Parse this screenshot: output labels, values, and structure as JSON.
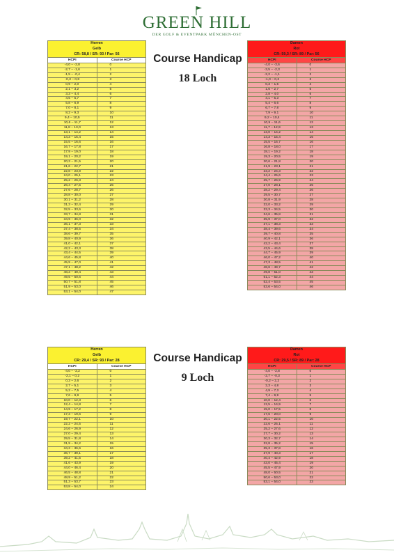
{
  "logo": {
    "title": "GREEN HILL",
    "subtitle": "DER GOLF & EVENTPARK MÜNCHEN-OST"
  },
  "section18": {
    "title": "Course Handicap",
    "subtitle": "18 Loch"
  },
  "section9": {
    "title": "Course Handicap",
    "subtitle": "9 Loch"
  },
  "tables": {
    "h18": {
      "line1": "Herren",
      "line2": "Gelb",
      "line3": "CR: 58,8 / SR: 93 / Par: 56",
      "col1": "HCPI",
      "col2": "Course HCP",
      "rows": [
        [
          "-4,0 – -2,8",
          "0"
        ],
        [
          "-2,7 – -1,6",
          "1"
        ],
        [
          "-1,5 – -0,4",
          "2"
        ],
        [
          "-0,3 – 0,8",
          "3"
        ],
        [
          "0,9 – 2,0",
          "4"
        ],
        [
          "2,1 – 3,2",
          "5"
        ],
        [
          "3,3 – 4,4",
          "6"
        ],
        [
          "4,5 – 5,7",
          "7"
        ],
        [
          "5,8 – 6,9",
          "8"
        ],
        [
          "7,0 – 8,1",
          "9"
        ],
        [
          "8,2 – 9,3",
          "10"
        ],
        [
          "9,4 – 10,5",
          "11"
        ],
        [
          "10,6 – 11,7",
          "12"
        ],
        [
          "11,8 – 13,0",
          "13"
        ],
        [
          "13,1 – 14,2",
          "14"
        ],
        [
          "14,3 – 15,4",
          "15"
        ],
        [
          "15,5 – 16,6",
          "16"
        ],
        [
          "16,7 – 17,8",
          "17"
        ],
        [
          "17,9 – 19,0",
          "18"
        ],
        [
          "19,1 – 20,2",
          "19"
        ],
        [
          "20,3 – 21,5",
          "20"
        ],
        [
          "21,6 – 22,7",
          "21"
        ],
        [
          "22,8 – 23,9",
          "22"
        ],
        [
          "24,0 – 25,1",
          "23"
        ],
        [
          "25,2 – 26,3",
          "24"
        ],
        [
          "26,4 – 27,5",
          "25"
        ],
        [
          "27,6 – 28,7",
          "26"
        ],
        [
          "28,8 – 30,0",
          "27"
        ],
        [
          "30,1 – 31,2",
          "28"
        ],
        [
          "31,3 – 32,4",
          "29"
        ],
        [
          "32,5 – 33,6",
          "30"
        ],
        [
          "33,7 – 34,8",
          "31"
        ],
        [
          "34,9 – 36,0",
          "32"
        ],
        [
          "36,1 – 37,3",
          "33"
        ],
        [
          "37,4 – 38,5",
          "34"
        ],
        [
          "38,6 – 39,7",
          "35"
        ],
        [
          "39,8 – 40,9",
          "36"
        ],
        [
          "41,0 – 42,1",
          "37"
        ],
        [
          "42,2 – 43,3",
          "38"
        ],
        [
          "43,4 – 44,5",
          "39"
        ],
        [
          "44,6 – 45,8",
          "40"
        ],
        [
          "45,9 – 47,0",
          "41"
        ],
        [
          "47,1 – 48,2",
          "42"
        ],
        [
          "48,3 – 49,4",
          "43"
        ],
        [
          "49,5 – 50,6",
          "44"
        ],
        [
          "50,7 – 51,8",
          "45"
        ],
        [
          "51,9 – 53,0",
          "46"
        ],
        [
          "53,1 – 54,0",
          "47"
        ]
      ]
    },
    "d18": {
      "line1": "Damen",
      "line2": "Rot",
      "line3": "CR: 59,3 / SR: 89 / Par: 56",
      "col1": "HCPI",
      "col2": "Course HCP",
      "rows": [
        [
          "-4,0 – -3,6",
          "0"
        ],
        [
          "-3,5 – -2,3",
          "1"
        ],
        [
          "-2,2 – -1,1",
          "2"
        ],
        [
          "-1,0 – 0,2",
          "3"
        ],
        [
          "0,3 – 1,5",
          "4"
        ],
        [
          "1,6 – 2,7",
          "5"
        ],
        [
          "2,8 – 4,0",
          "6"
        ],
        [
          "4,1 – 5,3",
          "7"
        ],
        [
          "5,4 – 6,6",
          "8"
        ],
        [
          "6,7 – 7,8",
          "9"
        ],
        [
          "7,9 – 9,1",
          "10"
        ],
        [
          "9,2 – 10,4",
          "11"
        ],
        [
          "10,5 – 11,6",
          "12"
        ],
        [
          "11,7 – 12,9",
          "13"
        ],
        [
          "13,0 – 14,2",
          "14"
        ],
        [
          "14,3 – 15,4",
          "15"
        ],
        [
          "15,5 – 16,7",
          "16"
        ],
        [
          "16,8 – 18,0",
          "17"
        ],
        [
          "18,1 – 19,2",
          "18"
        ],
        [
          "19,3 – 20,5",
          "19"
        ],
        [
          "20,6 – 21,8",
          "20"
        ],
        [
          "21,9 – 23,1",
          "21"
        ],
        [
          "23,2 – 24,3",
          "22"
        ],
        [
          "24,4 – 25,6",
          "23"
        ],
        [
          "25,7 – 26,9",
          "24"
        ],
        [
          "27,0 – 28,1",
          "25"
        ],
        [
          "28,2 – 29,4",
          "26"
        ],
        [
          "29,5 – 30,7",
          "27"
        ],
        [
          "30,8 – 31,9",
          "28"
        ],
        [
          "32,0 – 33,2",
          "29"
        ],
        [
          "33,3 – 34,5",
          "30"
        ],
        [
          "34,6 – 35,8",
          "31"
        ],
        [
          "35,9 – 37,0",
          "32"
        ],
        [
          "37,1 – 38,3",
          "33"
        ],
        [
          "38,4 – 39,6",
          "34"
        ],
        [
          "39,7 – 40,8",
          "35"
        ],
        [
          "40,9 – 42,1",
          "36"
        ],
        [
          "42,2 – 43,4",
          "37"
        ],
        [
          "43,5 – 44,6",
          "38"
        ],
        [
          "44,7 – 45,9",
          "39"
        ],
        [
          "46,0 – 47,2",
          "40"
        ],
        [
          "47,3 – 48,5",
          "41"
        ],
        [
          "48,6 – 49,7",
          "42"
        ],
        [
          "49,8 – 51,0",
          "43"
        ],
        [
          "51,1 – 52,3",
          "44"
        ],
        [
          "52,4 – 53,5",
          "45"
        ],
        [
          "53,6 – 54,0",
          "46"
        ]
      ]
    },
    "h9": {
      "line1": "Herren",
      "line2": "Gelb",
      "line3": "CR: 29,4 / SR: 93 / Par: 28",
      "col1": "HCPI",
      "col2": "Course HCP",
      "rows": [
        [
          "-4,0 – -2,2",
          "0"
        ],
        [
          "-2,1 – 0,2",
          "1"
        ],
        [
          "0,3 – 2,6",
          "2"
        ],
        [
          "2,7 – 5,1",
          "3"
        ],
        [
          "5,2 – 7,5",
          "4"
        ],
        [
          "7,6 – 9,9",
          "5"
        ],
        [
          "10,0 – 12,3",
          "6"
        ],
        [
          "12,4 – 14,8",
          "7"
        ],
        [
          "14,9 – 17,2",
          "8"
        ],
        [
          "17,3 – 19,6",
          "9"
        ],
        [
          "19,7 – 22,1",
          "10"
        ],
        [
          "22,2 – 24,5",
          "11"
        ],
        [
          "24,6 – 26,9",
          "12"
        ],
        [
          "27,0 – 29,4",
          "13"
        ],
        [
          "29,5 – 31,8",
          "14"
        ],
        [
          "31,9 – 34,2",
          "15"
        ],
        [
          "34,3 – 36,6",
          "16"
        ],
        [
          "36,7 – 39,1",
          "17"
        ],
        [
          "39,2 – 41,5",
          "18"
        ],
        [
          "41,6 – 43,9",
          "19"
        ],
        [
          "44,0 – 46,4",
          "20"
        ],
        [
          "46,5 – 48,8",
          "21"
        ],
        [
          "48,9 – 51,2",
          "22"
        ],
        [
          "51,3 – 53,7",
          "23"
        ],
        [
          "53,8 – 54,0",
          "24"
        ]
      ]
    },
    "d9": {
      "line1": "Damen",
      "line2": "Rot",
      "line3": "CR: 29,5 / SR: 89 / Par: 28",
      "col1": "HCPI",
      "col2": "Course HCP",
      "rows": [
        [
          "-4,0 – -2,8",
          "0"
        ],
        [
          "-2,7 – -0,3",
          "1"
        ],
        [
          "-0,2 – 2,2",
          "2"
        ],
        [
          "2,3 – 4,8",
          "3"
        ],
        [
          "4,9 – 7,3",
          "4"
        ],
        [
          "7,4 – 9,9",
          "5"
        ],
        [
          "10,0 – 12,4",
          "6"
        ],
        [
          "12,5 – 14,9",
          "7"
        ],
        [
          "15,0 – 17,5",
          "8"
        ],
        [
          "17,6 – 20,0",
          "9"
        ],
        [
          "20,1 – 22,5",
          "10"
        ],
        [
          "22,6 – 25,1",
          "11"
        ],
        [
          "25,2 – 27,6",
          "12"
        ],
        [
          "27,7 – 30,2",
          "13"
        ],
        [
          "30,3 – 32,7",
          "14"
        ],
        [
          "32,8 – 35,2",
          "15"
        ],
        [
          "35,3 – 37,8",
          "16"
        ],
        [
          "37,9 – 40,3",
          "17"
        ],
        [
          "40,4 – 42,9",
          "18"
        ],
        [
          "43,0 – 45,4",
          "19"
        ],
        [
          "45,5 – 47,9",
          "20"
        ],
        [
          "48,0 – 50,5",
          "21"
        ],
        [
          "50,6 – 53,0",
          "22"
        ],
        [
          "53,1 – 54,0",
          "23"
        ]
      ]
    }
  },
  "colors": {
    "yellow": "#fbf24a",
    "red": "#ff1a1a",
    "pink": "#f3a6a6",
    "brand_green": "#2e6e34"
  }
}
